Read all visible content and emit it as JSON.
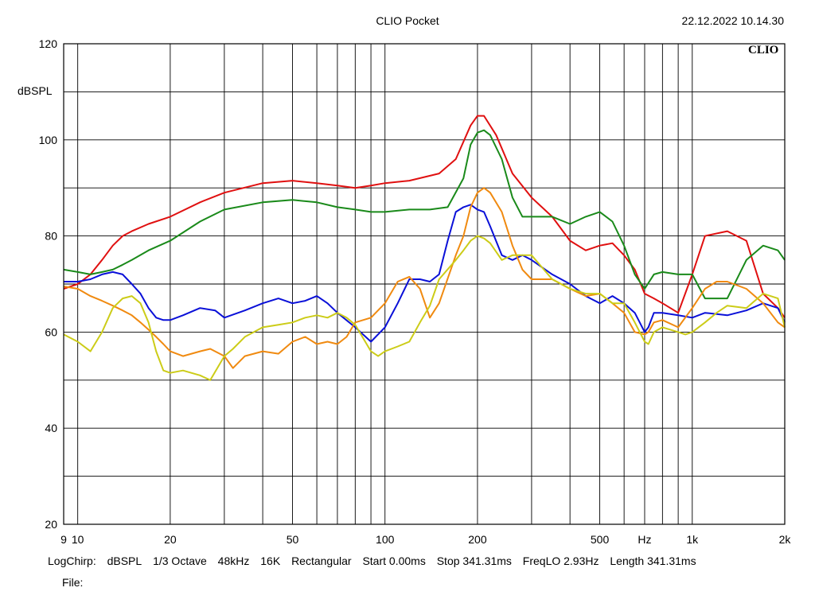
{
  "header": {
    "app_title": "CLIO Pocket",
    "timestamp": "22.12.2022 10.14.30",
    "brand": "CLIO"
  },
  "info": {
    "items": [
      "LogChirp:",
      "dBSPL",
      "1/3 Octave",
      "48kHz",
      "16K",
      "Rectangular",
      "Start 0.00ms",
      "Stop 341.31ms",
      "FreqLO 2.93Hz",
      "Length 341.31ms"
    ],
    "file_label": "File:"
  },
  "colors": {
    "red": "#e01010",
    "green": "#1a8a1a",
    "blue": "#0a10d8",
    "orange": "#f08a10",
    "yellow": "#cccc18",
    "grid": "#000000"
  },
  "chart_data": {
    "type": "line",
    "title": "",
    "ylabel": "dBSPL",
    "xunit": "Hz",
    "xscale": "log",
    "xlim": [
      9,
      2000
    ],
    "ylim": [
      20,
      120
    ],
    "y_ticks": [
      {
        "v": 20,
        "label": "20"
      },
      {
        "v": 40,
        "label": "40"
      },
      {
        "v": 60,
        "label": "60"
      },
      {
        "v": 80,
        "label": "80"
      },
      {
        "v": 100,
        "label": "100"
      },
      {
        "v": 120,
        "label": "120"
      }
    ],
    "x_ticks": [
      {
        "v": 9,
        "label": "9"
      },
      {
        "v": 10,
        "label": "10"
      },
      {
        "v": 20,
        "label": "20"
      },
      {
        "v": 50,
        "label": "50"
      },
      {
        "v": 100,
        "label": "100"
      },
      {
        "v": 200,
        "label": "200"
      },
      {
        "v": 500,
        "label": "500"
      },
      {
        "v": 700,
        "label": "Hz"
      },
      {
        "v": 1000,
        "label": "1k"
      },
      {
        "v": 2000,
        "label": "2k"
      }
    ],
    "series": [
      {
        "color": "red",
        "x": [
          9,
          10,
          11,
          12,
          13,
          14,
          15,
          17,
          20,
          25,
          30,
          40,
          50,
          60,
          70,
          80,
          90,
          100,
          120,
          150,
          170,
          190,
          200,
          210,
          230,
          260,
          300,
          350,
          400,
          450,
          500,
          550,
          600,
          650,
          700,
          750,
          800,
          900,
          1000,
          1100,
          1300,
          1500,
          1700,
          1900,
          2000
        ],
        "y": [
          69,
          70,
          72,
          75,
          78,
          80,
          81,
          82.5,
          84,
          87,
          89,
          91,
          91.5,
          91,
          90.5,
          90,
          90.5,
          91,
          91.5,
          93,
          96,
          103,
          105,
          105,
          101,
          93,
          88,
          84,
          79,
          77,
          78,
          78.5,
          76,
          73,
          68,
          67,
          66,
          64,
          72,
          80,
          81,
          79,
          68,
          65,
          63
        ]
      },
      {
        "color": "green",
        "x": [
          9,
          10,
          11,
          12,
          13,
          14,
          15,
          17,
          20,
          25,
          30,
          40,
          50,
          60,
          70,
          80,
          90,
          100,
          120,
          140,
          160,
          180,
          190,
          200,
          210,
          220,
          240,
          260,
          280,
          300,
          350,
          400,
          450,
          500,
          550,
          600,
          650,
          700,
          750,
          800,
          900,
          1000,
          1100,
          1300,
          1500,
          1700,
          1900,
          2000
        ],
        "y": [
          73,
          72.5,
          72,
          72.5,
          73,
          74,
          75,
          77,
          79,
          83,
          85.5,
          87,
          87.5,
          87,
          86,
          85.5,
          85,
          85,
          85.5,
          85.5,
          86,
          92,
          99,
          101.5,
          102,
          101,
          96,
          88,
          84,
          84,
          84,
          82.5,
          84,
          85,
          83,
          78,
          72,
          69,
          72,
          72.5,
          72,
          72,
          67,
          67,
          75,
          78,
          77,
          75
        ]
      },
      {
        "color": "blue",
        "x": [
          9,
          10,
          11,
          12,
          13,
          14,
          15,
          16,
          17,
          18,
          19,
          20,
          22,
          25,
          28,
          30,
          35,
          40,
          45,
          50,
          55,
          60,
          65,
          70,
          80,
          90,
          100,
          110,
          120,
          130,
          140,
          150,
          160,
          170,
          180,
          190,
          200,
          210,
          220,
          240,
          260,
          280,
          300,
          350,
          400,
          450,
          500,
          550,
          600,
          650,
          700,
          720,
          750,
          800,
          900,
          1000,
          1100,
          1300,
          1500,
          1700,
          1900,
          2000
        ],
        "y": [
          70.5,
          70.5,
          71,
          72,
          72.5,
          72,
          70,
          68,
          65,
          63,
          62.5,
          62.5,
          63.5,
          65,
          64.5,
          63,
          64.5,
          66,
          67,
          66,
          66.5,
          67.5,
          66,
          64,
          61,
          58,
          61,
          66,
          71,
          71,
          70.5,
          72,
          79,
          85,
          86,
          86.5,
          85.5,
          85,
          82,
          76,
          75,
          76,
          75,
          72,
          70,
          67.5,
          66,
          67.5,
          66,
          64,
          60,
          61,
          64,
          64,
          63.5,
          63,
          64,
          63.5,
          64.5,
          66,
          65,
          62
        ]
      },
      {
        "color": "orange",
        "x": [
          9,
          10,
          11,
          12,
          13,
          14,
          15,
          16,
          17,
          18,
          19,
          20,
          22,
          25,
          27,
          30,
          32,
          35,
          40,
          45,
          50,
          55,
          60,
          65,
          70,
          75,
          80,
          90,
          100,
          110,
          120,
          130,
          140,
          150,
          170,
          180,
          190,
          200,
          210,
          220,
          240,
          260,
          280,
          300,
          350,
          400,
          450,
          500,
          550,
          600,
          650,
          700,
          720,
          750,
          800,
          900,
          1000,
          1100,
          1200,
          1300,
          1500,
          1700,
          1900,
          2000
        ],
        "y": [
          69.5,
          69,
          67.5,
          66.5,
          65.5,
          64.5,
          63.5,
          62,
          60.5,
          59,
          57.5,
          56,
          55,
          56,
          56.5,
          55,
          52.5,
          55,
          56,
          55.5,
          58,
          59,
          57.5,
          58,
          57.5,
          59,
          62,
          63,
          66,
          70.5,
          71.5,
          69,
          63,
          66,
          76,
          80,
          86,
          89,
          90,
          89,
          85,
          78,
          73,
          71,
          71,
          69,
          67.5,
          68,
          66,
          64,
          60,
          59.5,
          60,
          62,
          62.5,
          61,
          65,
          69,
          70.5,
          70.5,
          69,
          66,
          62,
          61
        ]
      },
      {
        "color": "yellow",
        "x": [
          9,
          10,
          11,
          12,
          13,
          14,
          15,
          16,
          17,
          18,
          19,
          20,
          22,
          25,
          27,
          30,
          32,
          35,
          40,
          45,
          50,
          55,
          60,
          65,
          70,
          75,
          80,
          90,
          95,
          100,
          110,
          120,
          130,
          140,
          150,
          170,
          180,
          190,
          200,
          210,
          220,
          240,
          260,
          280,
          300,
          350,
          400,
          450,
          500,
          550,
          600,
          650,
          700,
          720,
          750,
          800,
          900,
          950,
          1000,
          1100,
          1200,
          1300,
          1500,
          1700,
          1900,
          2000
        ],
        "y": [
          59.5,
          58,
          56,
          60,
          65,
          67,
          67.5,
          66,
          62,
          56,
          52,
          51.5,
          52,
          51,
          50,
          55,
          56.5,
          59,
          61,
          61.5,
          62,
          63,
          63.5,
          63,
          64,
          63,
          61.5,
          56,
          55,
          56,
          57,
          58,
          62,
          65.5,
          71,
          75,
          77,
          79,
          80,
          79.5,
          78.5,
          75,
          76,
          76,
          76,
          71,
          69,
          68,
          68,
          66,
          66,
          62,
          58,
          57.5,
          60,
          61,
          60,
          59.5,
          60,
          62,
          64,
          65.5,
          65,
          68,
          67,
          61
        ]
      }
    ]
  }
}
